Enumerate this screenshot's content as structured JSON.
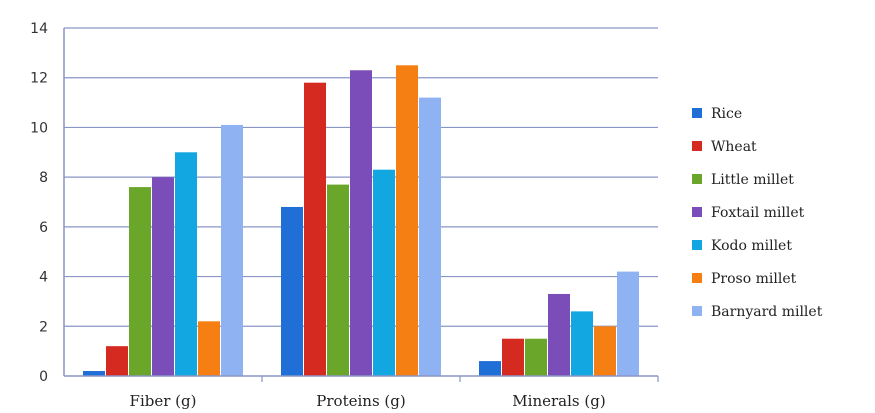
{
  "chart_data": {
    "type": "bar",
    "title": "",
    "xlabel": "",
    "ylabel": "",
    "categories": [
      "Fiber (g)",
      "Proteins (g)",
      "Minerals (g)"
    ],
    "ylim": [
      0,
      14
    ],
    "yticks": [
      0,
      2,
      4,
      6,
      8,
      10,
      12,
      14
    ],
    "grid": true,
    "legend_position": "right",
    "series": [
      {
        "name": "Rice",
        "color": "#1f6fd6",
        "values": [
          0.2,
          6.8,
          0.6
        ]
      },
      {
        "name": "Wheat",
        "color": "#d42a1f",
        "values": [
          1.2,
          11.8,
          1.5
        ]
      },
      {
        "name": "Little millet",
        "color": "#6aa62a",
        "values": [
          7.6,
          7.7,
          1.5
        ]
      },
      {
        "name": "Foxtail millet",
        "color": "#7b4db8",
        "values": [
          8.0,
          12.3,
          3.3
        ]
      },
      {
        "name": "Kodo millet",
        "color": "#12a7e0",
        "values": [
          9.0,
          8.3,
          2.6
        ]
      },
      {
        "name": "Proso millet",
        "color": "#f57f12",
        "values": [
          2.2,
          12.5,
          2.0
        ]
      },
      {
        "name": "Barnyard millet",
        "color": "#8fb3f2",
        "values": [
          10.1,
          11.2,
          4.2
        ]
      }
    ]
  }
}
